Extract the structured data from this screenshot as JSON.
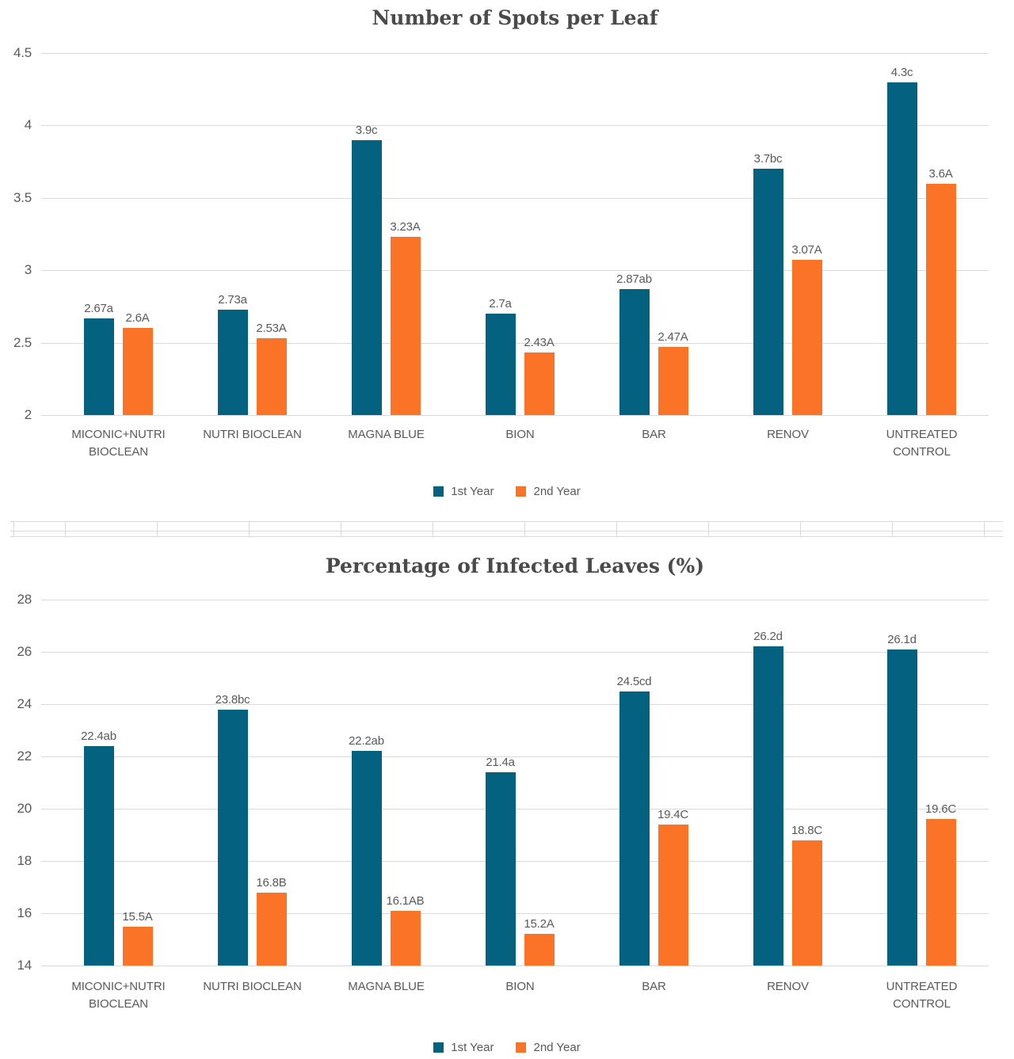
{
  "colors": {
    "first_year": "#04617F",
    "second_year": "#FB7327",
    "gridline": "#D9D9D9",
    "label_text": "#595959",
    "title_text": "#4A4A4A"
  },
  "chart_data": [
    {
      "type": "bar",
      "title": "Number of Spots per Leaf",
      "categories": [
        "MICONIC+NUTRI BIOCLEAN",
        "NUTRI BIOCLEAN",
        "MAGNA BLUE",
        "BION",
        "BAR",
        "RENOV",
        "UNTREATED CONTROL"
      ],
      "series": [
        {
          "name": "1st Year",
          "color": "#04617F",
          "values": [
            2.67,
            2.73,
            3.9,
            2.7,
            2.87,
            3.7,
            4.3
          ],
          "labels": [
            "2.67a",
            "2.73a",
            "3.9c",
            "2.7a",
            "2.87ab",
            "3.7bc",
            "4.3c"
          ]
        },
        {
          "name": "2nd Year",
          "color": "#FB7327",
          "values": [
            2.6,
            2.53,
            3.23,
            2.43,
            2.47,
            3.07,
            3.6
          ],
          "labels": [
            "2.6A",
            "2.53A",
            "3.23A",
            "2.43A",
            "2.47A",
            "3.07A",
            "3.6A"
          ]
        }
      ],
      "ylim": [
        2,
        4.5
      ],
      "yticks": [
        2,
        2.5,
        3,
        3.5,
        4,
        4.5
      ],
      "ytick_labels": [
        "2",
        "2.5",
        "3",
        "3.5",
        "4",
        "4.5"
      ],
      "grid": true,
      "legend_position": "bottom"
    },
    {
      "type": "bar",
      "title": "Percentage of Infected Leaves (%)",
      "categories": [
        "MICONIC+NUTRI BIOCLEAN",
        "NUTRI BIOCLEAN",
        "MAGNA BLUE",
        "BION",
        "BAR",
        "RENOV",
        "UNTREATED CONTROL"
      ],
      "series": [
        {
          "name": "1st Year",
          "color": "#04617F",
          "values": [
            22.4,
            23.8,
            22.2,
            21.4,
            24.5,
            26.2,
            26.1
          ],
          "labels": [
            "22.4ab",
            "23.8bc",
            "22.2ab",
            "21.4a",
            "24.5cd",
            "26.2d",
            "26.1d"
          ]
        },
        {
          "name": "2nd Year",
          "color": "#FB7327",
          "values": [
            15.5,
            16.8,
            16.1,
            15.2,
            19.4,
            18.8,
            19.6
          ],
          "labels": [
            "15.5A",
            "16.8B",
            "16.1AB",
            "15.2A",
            "19.4C",
            "18.8C",
            "19.6C"
          ]
        }
      ],
      "ylim": [
        14,
        28
      ],
      "yticks": [
        14,
        16,
        18,
        20,
        22,
        24,
        26,
        28
      ],
      "ytick_labels": [
        "14",
        "16",
        "18",
        "20",
        "22",
        "24",
        "26",
        "28"
      ],
      "grid": true,
      "legend_position": "bottom"
    }
  ]
}
